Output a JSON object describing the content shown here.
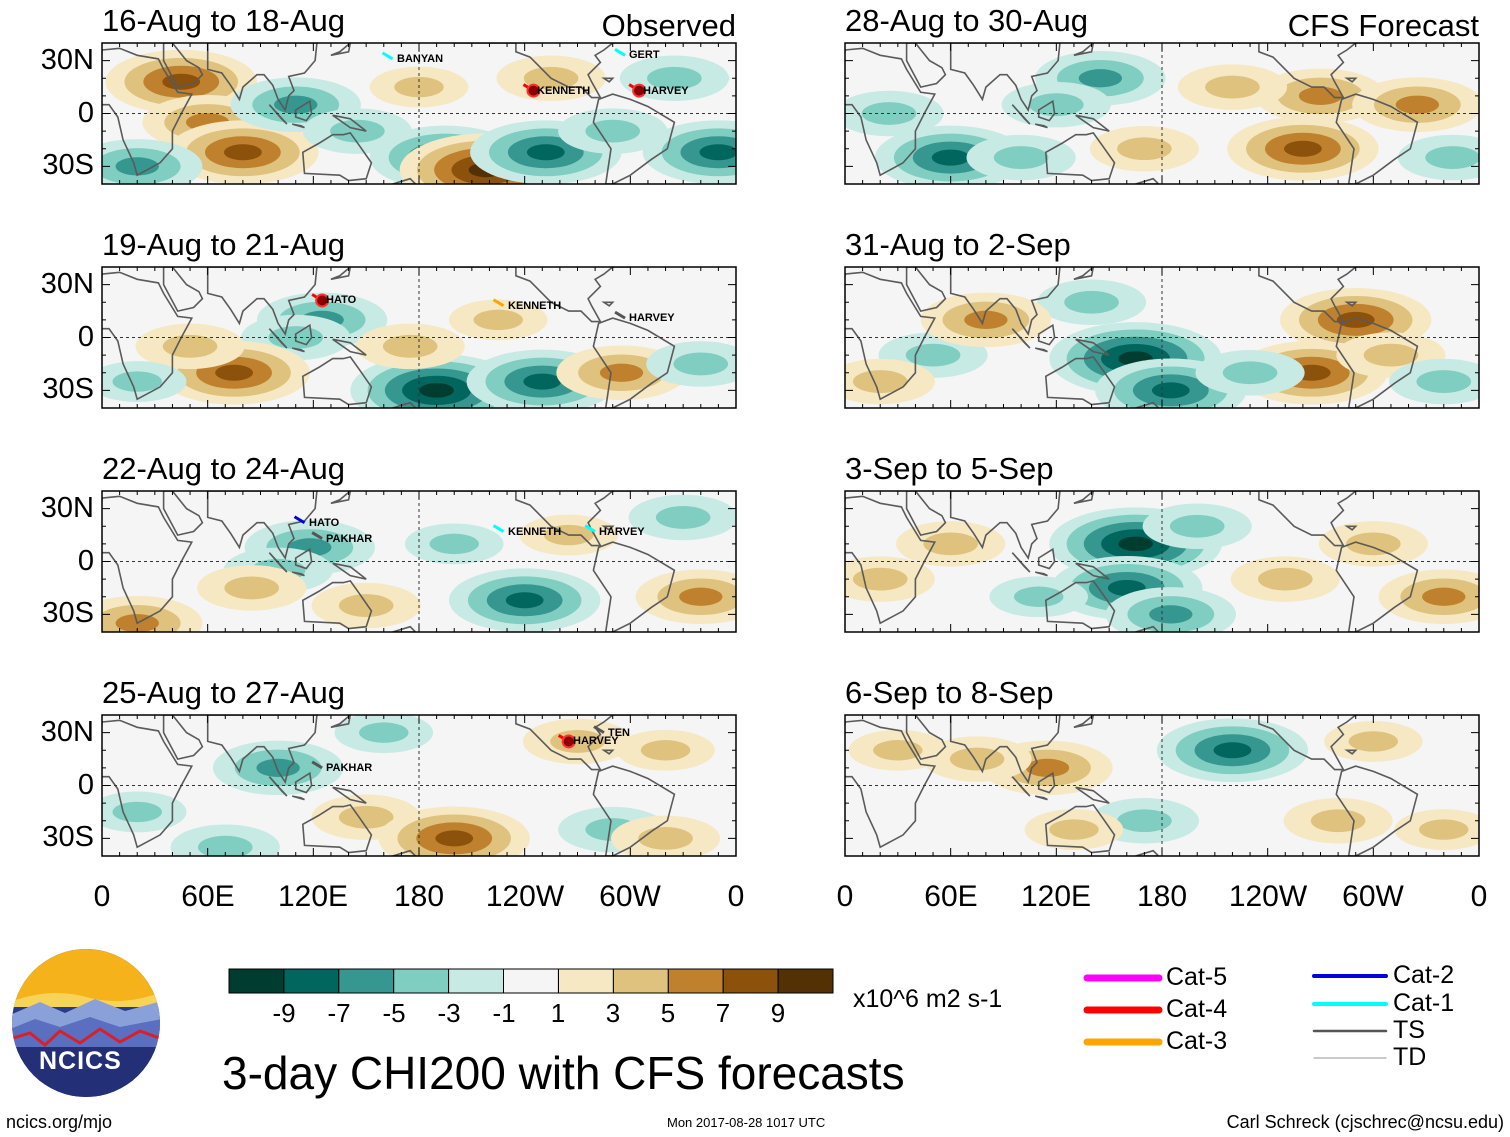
{
  "figure": {
    "main_title": "3-day CHI200 with CFS forecasts",
    "footer_left": "ncics.org/mjo",
    "footer_center": "Mon 2017-08-28 1017 UTC",
    "footer_right": "Carl Schreck (cjschrec@ncsu.edu)",
    "logo_text": "NCICS"
  },
  "colors": {
    "ramp": [
      "#003c30",
      "#01665e",
      "#35978f",
      "#80cdc1",
      "#c7eae5",
      "#f5f5f5",
      "#f6e8c3",
      "#dfc27d",
      "#bf812d",
      "#8c510a",
      "#543005"
    ],
    "coast": "#5a5a5a",
    "cat5": "#ff00ff",
    "cat4": "#ff0000",
    "cat3": "#ffa500",
    "cat2": "#0000dd",
    "cat1": "#00ffff",
    "ts": "#555555",
    "td": "#aaaaaa"
  },
  "column_labels": {
    "left": "Observed",
    "right": "CFS Forecast"
  },
  "chart_data": [
    {
      "type": "heatmap",
      "variable": "CHI200 velocity potential anomaly",
      "units": "x10^6 m2 s-1",
      "title": "16-Aug to 18-Aug",
      "kind": "Observed",
      "xlim": [
        0,
        360
      ],
      "ylim": [
        -40,
        40
      ],
      "blobs": [
        {
          "lon": 45,
          "lat": 18,
          "val": 7
        },
        {
          "lon": 60,
          "lat": -5,
          "val": 5
        },
        {
          "lon": 80,
          "lat": -22,
          "val": 7
        },
        {
          "lon": 20,
          "lat": -30,
          "val": -5
        },
        {
          "lon": 110,
          "lat": 5,
          "val": -5
        },
        {
          "lon": 145,
          "lat": -10,
          "val": -3
        },
        {
          "lon": 195,
          "lat": -25,
          "val": -7
        },
        {
          "lon": 218,
          "lat": -32,
          "val": 9
        },
        {
          "lon": 252,
          "lat": -22,
          "val": -7
        },
        {
          "lon": 290,
          "lat": -10,
          "val": -3
        },
        {
          "lon": 350,
          "lat": -22,
          "val": -7
        },
        {
          "lon": 180,
          "lat": 15,
          "val": 2
        },
        {
          "lon": 255,
          "lat": 20,
          "val": 3
        },
        {
          "lon": 325,
          "lat": 20,
          "val": -3
        }
      ],
      "storms": [
        {
          "name": "BANYAN",
          "lon": 165,
          "lat": 31,
          "cat": "cat1"
        },
        {
          "name": "GERT",
          "lon": 297,
          "lat": 33,
          "cat": "cat1"
        },
        {
          "name": "KENNETH",
          "lon": 245,
          "lat": 13,
          "cat": "cat4"
        },
        {
          "name": "HARVEY",
          "lon": 305,
          "lat": 13,
          "cat": "cat4"
        }
      ]
    },
    {
      "type": "heatmap",
      "variable": "CHI200 velocity potential anomaly",
      "units": "x10^6 m2 s-1",
      "title": "19-Aug to 21-Aug",
      "kind": "Observed",
      "xlim": [
        0,
        360
      ],
      "ylim": [
        -40,
        40
      ],
      "blobs": [
        {
          "lon": 125,
          "lat": 10,
          "val": -5
        },
        {
          "lon": 110,
          "lat": 0,
          "val": -3
        },
        {
          "lon": 75,
          "lat": -20,
          "val": 7
        },
        {
          "lon": 50,
          "lat": -5,
          "val": 3
        },
        {
          "lon": 190,
          "lat": -30,
          "val": -9
        },
        {
          "lon": 250,
          "lat": -25,
          "val": -7
        },
        {
          "lon": 295,
          "lat": -20,
          "val": 5
        },
        {
          "lon": 340,
          "lat": -15,
          "val": -3
        },
        {
          "lon": 175,
          "lat": -5,
          "val": 3
        },
        {
          "lon": 225,
          "lat": 10,
          "val": 2
        },
        {
          "lon": 20,
          "lat": -25,
          "val": -2
        }
      ],
      "storms": [
        {
          "name": "HATO",
          "lon": 125,
          "lat": 21,
          "cat": "cat4"
        },
        {
          "name": "KENNETH",
          "lon": 228,
          "lat": 18,
          "cat": "cat3"
        },
        {
          "name": "HARVEY",
          "lon": 297,
          "lat": 11,
          "cat": "ts"
        }
      ]
    },
    {
      "type": "heatmap",
      "variable": "CHI200 velocity potential anomaly",
      "units": "x10^6 m2 s-1",
      "title": "22-Aug to 24-Aug",
      "kind": "Observed",
      "xlim": [
        0,
        360
      ],
      "ylim": [
        -40,
        40
      ],
      "blobs": [
        {
          "lon": 118,
          "lat": 8,
          "val": -5
        },
        {
          "lon": 100,
          "lat": -5,
          "val": -3
        },
        {
          "lon": 20,
          "lat": -35,
          "val": 5
        },
        {
          "lon": 85,
          "lat": -15,
          "val": 3
        },
        {
          "lon": 150,
          "lat": -25,
          "val": 3
        },
        {
          "lon": 240,
          "lat": -22,
          "val": -7
        },
        {
          "lon": 340,
          "lat": -20,
          "val": 5
        },
        {
          "lon": 330,
          "lat": 25,
          "val": -3
        },
        {
          "lon": 200,
          "lat": 10,
          "val": -2
        },
        {
          "lon": 265,
          "lat": 15,
          "val": 2
        }
      ],
      "storms": [
        {
          "name": "HATO",
          "lon": 115,
          "lat": 22,
          "cat": "cat2"
        },
        {
          "name": "PAKHAR",
          "lon": 125,
          "lat": 13,
          "cat": "ts"
        },
        {
          "name": "KENNETH",
          "lon": 228,
          "lat": 17,
          "cat": "cat1"
        },
        {
          "name": "HARVEY",
          "lon": 280,
          "lat": 17,
          "cat": "cat1"
        }
      ]
    },
    {
      "type": "heatmap",
      "variable": "CHI200 velocity potential anomaly",
      "units": "x10^6 m2 s-1",
      "title": "25-Aug to 27-Aug",
      "kind": "Observed",
      "xlim": [
        0,
        360
      ],
      "ylim": [
        -40,
        40
      ],
      "blobs": [
        {
          "lon": 100,
          "lat": 10,
          "val": -5
        },
        {
          "lon": 150,
          "lat": -18,
          "val": 3
        },
        {
          "lon": 200,
          "lat": -30,
          "val": 7
        },
        {
          "lon": 70,
          "lat": -35,
          "val": -3
        },
        {
          "lon": 290,
          "lat": -25,
          "val": -3
        },
        {
          "lon": 320,
          "lat": -30,
          "val": 3
        },
        {
          "lon": 270,
          "lat": 25,
          "val": 3
        },
        {
          "lon": 320,
          "lat": 20,
          "val": 2
        },
        {
          "lon": 160,
          "lat": 30,
          "val": -2
        },
        {
          "lon": 20,
          "lat": -15,
          "val": -2
        }
      ],
      "storms": [
        {
          "name": "PAKHAR",
          "lon": 125,
          "lat": 10,
          "cat": "ts"
        },
        {
          "name": "TEN",
          "lon": 285,
          "lat": 30,
          "cat": "ts"
        },
        {
          "name": "HARVEY",
          "lon": 265,
          "lat": 25,
          "cat": "cat4"
        }
      ]
    },
    {
      "type": "heatmap",
      "variable": "CHI200 velocity potential anomaly",
      "units": "x10^6 m2 s-1",
      "title": "28-Aug to 30-Aug",
      "kind": "CFS Forecast",
      "xlim": [
        0,
        360
      ],
      "ylim": [
        -40,
        40
      ],
      "blobs": [
        {
          "lon": 145,
          "lat": 20,
          "val": -5
        },
        {
          "lon": 120,
          "lat": 5,
          "val": -3
        },
        {
          "lon": 25,
          "lat": 0,
          "val": -3
        },
        {
          "lon": 60,
          "lat": -25,
          "val": -7
        },
        {
          "lon": 100,
          "lat": -25,
          "val": -3
        },
        {
          "lon": 170,
          "lat": -20,
          "val": 3
        },
        {
          "lon": 260,
          "lat": -20,
          "val": 7
        },
        {
          "lon": 270,
          "lat": 10,
          "val": 5
        },
        {
          "lon": 325,
          "lat": 5,
          "val": 5
        },
        {
          "lon": 220,
          "lat": 15,
          "val": 3
        },
        {
          "lon": 345,
          "lat": -25,
          "val": -3
        }
      ],
      "storms": []
    },
    {
      "type": "heatmap",
      "variable": "CHI200 velocity potential anomaly",
      "units": "x10^6 m2 s-1",
      "title": "31-Aug to 2-Sep",
      "kind": "CFS Forecast",
      "xlim": [
        0,
        360
      ],
      "ylim": [
        -40,
        40
      ],
      "blobs": [
        {
          "lon": 165,
          "lat": -12,
          "val": -9
        },
        {
          "lon": 185,
          "lat": -30,
          "val": -7
        },
        {
          "lon": 140,
          "lat": 20,
          "val": -3
        },
        {
          "lon": 50,
          "lat": -10,
          "val": -3
        },
        {
          "lon": 80,
          "lat": 10,
          "val": 5
        },
        {
          "lon": 20,
          "lat": -25,
          "val": 3
        },
        {
          "lon": 290,
          "lat": 10,
          "val": 7
        },
        {
          "lon": 265,
          "lat": -20,
          "val": 7
        },
        {
          "lon": 310,
          "lat": -10,
          "val": 3
        },
        {
          "lon": 230,
          "lat": -20,
          "val": -3
        },
        {
          "lon": 340,
          "lat": -25,
          "val": -3
        }
      ],
      "storms": []
    },
    {
      "type": "heatmap",
      "variable": "CHI200 velocity potential anomaly",
      "units": "x10^6 m2 s-1",
      "title": "3-Sep to 5-Sep",
      "kind": "CFS Forecast",
      "xlim": [
        0,
        360
      ],
      "ylim": [
        -40,
        40
      ],
      "blobs": [
        {
          "lon": 165,
          "lat": 10,
          "val": -9
        },
        {
          "lon": 160,
          "lat": -15,
          "val": -7
        },
        {
          "lon": 185,
          "lat": -30,
          "val": -5
        },
        {
          "lon": 200,
          "lat": 20,
          "val": -3
        },
        {
          "lon": 60,
          "lat": 10,
          "val": 3
        },
        {
          "lon": 20,
          "lat": -10,
          "val": 3
        },
        {
          "lon": 250,
          "lat": -10,
          "val": 3
        },
        {
          "lon": 340,
          "lat": -20,
          "val": 5
        },
        {
          "lon": 300,
          "lat": 10,
          "val": 3
        },
        {
          "lon": 110,
          "lat": -20,
          "val": -2
        }
      ],
      "storms": []
    },
    {
      "type": "heatmap",
      "variable": "CHI200 velocity potential anomaly",
      "units": "x10^6 m2 s-1",
      "title": "6-Sep to 8-Sep",
      "kind": "CFS Forecast",
      "xlim": [
        0,
        360
      ],
      "ylim": [
        -40,
        40
      ],
      "blobs": [
        {
          "lon": 220,
          "lat": 20,
          "val": -7
        },
        {
          "lon": 170,
          "lat": -20,
          "val": -3
        },
        {
          "lon": 115,
          "lat": 10,
          "val": 5
        },
        {
          "lon": 75,
          "lat": 15,
          "val": 3
        },
        {
          "lon": 30,
          "lat": 20,
          "val": 2
        },
        {
          "lon": 280,
          "lat": -20,
          "val": 3
        },
        {
          "lon": 340,
          "lat": -25,
          "val": 2
        },
        {
          "lon": 300,
          "lat": 25,
          "val": 2
        },
        {
          "lon": 130,
          "lat": -25,
          "val": 2
        }
      ],
      "storms": []
    }
  ],
  "axes": {
    "y_ticks": [
      {
        "label": "30N",
        "lat": 30
      },
      {
        "label": "0",
        "lat": 0
      },
      {
        "label": "30S",
        "lat": -30
      }
    ],
    "x_ticks": [
      {
        "label": "0",
        "lon": 0
      },
      {
        "label": "60E",
        "lon": 60
      },
      {
        "label": "120E",
        "lon": 120
      },
      {
        "label": "180",
        "lon": 180
      },
      {
        "label": "120W",
        "lon": 240
      },
      {
        "label": "60W",
        "lon": 300
      },
      {
        "label": "0",
        "lon": 360
      }
    ]
  },
  "colorbar": {
    "labels": [
      "-9",
      "-7",
      "-5",
      "-3",
      "-1",
      "1",
      "3",
      "5",
      "7",
      "9"
    ],
    "units": "x10^6 m2 s-1"
  },
  "legend": [
    {
      "label": "Cat-5",
      "key": "cat5"
    },
    {
      "label": "Cat-4",
      "key": "cat4"
    },
    {
      "label": "Cat-3",
      "key": "cat3"
    },
    {
      "label": "Cat-2",
      "key": "cat2"
    },
    {
      "label": "Cat-1",
      "key": "cat1"
    },
    {
      "label": "TS",
      "key": "ts"
    },
    {
      "label": "TD",
      "key": "td"
    }
  ]
}
